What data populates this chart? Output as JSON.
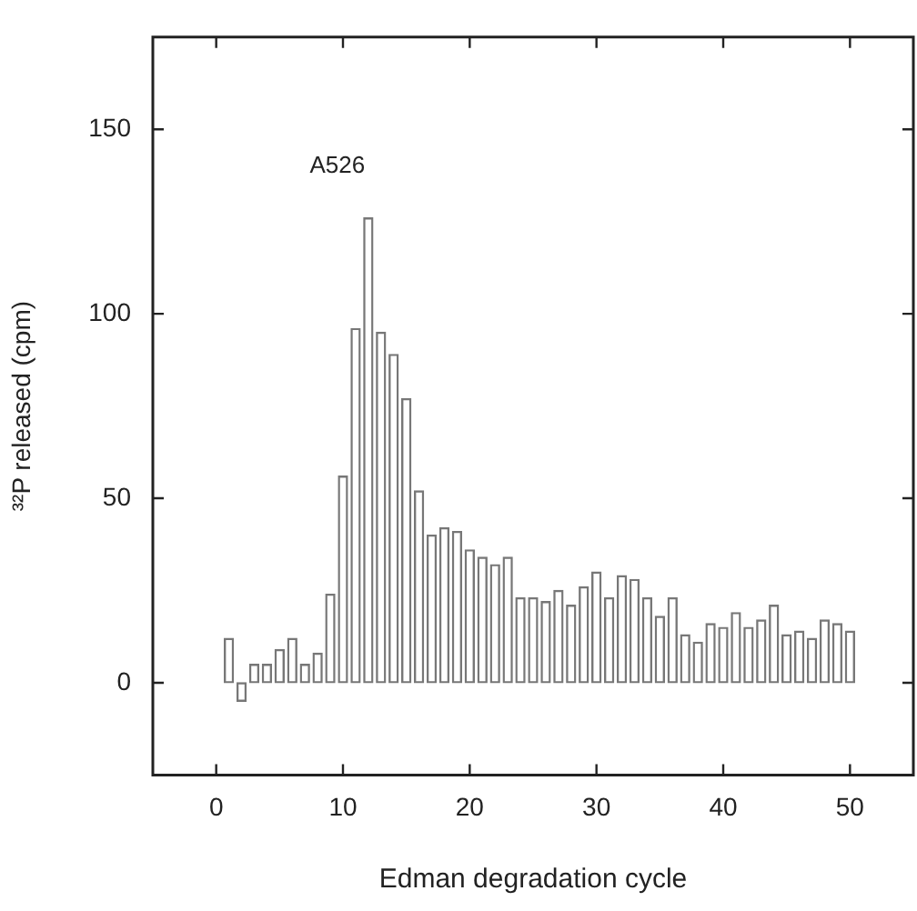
{
  "chart_data": {
    "type": "bar",
    "xlabel": "Edman degradation cycle",
    "ylabel": "³²P released (cpm)",
    "x": [
      1,
      2,
      3,
      4,
      5,
      6,
      7,
      8,
      9,
      10,
      11,
      12,
      13,
      14,
      15,
      16,
      17,
      18,
      19,
      20,
      21,
      22,
      23,
      24,
      25,
      26,
      27,
      28,
      29,
      30,
      31,
      32,
      33,
      34,
      35,
      36,
      37,
      38,
      39,
      40,
      41,
      42,
      43,
      44,
      45,
      46,
      47,
      48,
      49,
      50
    ],
    "values": [
      12,
      -5,
      5,
      5,
      9,
      12,
      5,
      8,
      24,
      56,
      96,
      126,
      95,
      89,
      77,
      52,
      40,
      42,
      41,
      36,
      34,
      32,
      34,
      23,
      23,
      22,
      25,
      21,
      26,
      30,
      23,
      29,
      28,
      23,
      18,
      23,
      13,
      11,
      16,
      15,
      19,
      15,
      17,
      21,
      13,
      14,
      12,
      17,
      16,
      14
    ],
    "color": "#ffffff",
    "xlim": [
      -5,
      55
    ],
    "xticks": [
      0,
      10,
      20,
      30,
      40,
      50
    ],
    "ylim": [
      -25,
      175
    ],
    "yticks": [
      0,
      50,
      100,
      150
    ],
    "annotations": [
      {
        "text": "A526",
        "x": 12,
        "y": 126
      }
    ],
    "grid": false,
    "legend": false
  }
}
